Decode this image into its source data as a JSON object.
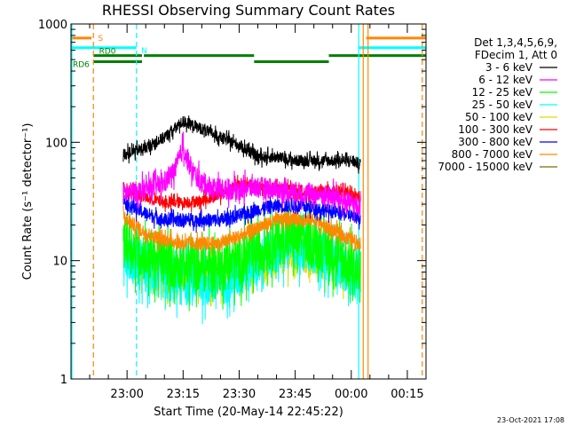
{
  "chart_data": {
    "type": "line",
    "title": "RHESSI Observing Summary Count Rates",
    "xlabel": "Start Time (20-May-14 22:45:22)",
    "ylabel": "Count Rate (s⁻¹ detector⁻¹)",
    "y_scale": "log",
    "ylim": [
      1,
      1000
    ],
    "xlim_minutes_after_2245": [
      0,
      95
    ],
    "grid": false,
    "legend_placement": "right",
    "y_ticks": [
      {
        "value": 1,
        "label": "1"
      },
      {
        "value": 10,
        "label": "10"
      },
      {
        "value": 100,
        "label": "100"
      },
      {
        "value": 1000,
        "label": "1000"
      }
    ],
    "x_ticks": [
      {
        "minute": 15,
        "label": "23:00"
      },
      {
        "minute": 30,
        "label": "23:15"
      },
      {
        "minute": 45,
        "label": "23:30"
      },
      {
        "minute": 60,
        "label": "23:45"
      },
      {
        "minute": 75,
        "label": "00:00"
      },
      {
        "minute": 90,
        "label": "00:15"
      }
    ],
    "legend_header": [
      "Det 1,3,4,5,6,9,",
      "FDecim 1, Att 0"
    ],
    "series": [
      {
        "name": "3 - 6 keV",
        "color": "#000000",
        "minutes": [
          14,
          15,
          20,
          25,
          30,
          35,
          40,
          45,
          50,
          55,
          60,
          65,
          70,
          75,
          77.5
        ],
        "values": [
          80,
          80,
          90,
          110,
          150,
          130,
          110,
          95,
          75,
          75,
          70,
          70,
          70,
          70,
          65
        ]
      },
      {
        "name": "6 - 12 keV",
        "color": "#ff00ff",
        "minutes": [
          14,
          15,
          20,
          25,
          28,
          30,
          32,
          35,
          40,
          45,
          50,
          55,
          60,
          65,
          70,
          75,
          77.5
        ],
        "values": [
          37,
          37,
          40,
          45,
          60,
          90,
          60,
          45,
          40,
          40,
          42,
          40,
          38,
          36,
          35,
          30,
          28
        ]
      },
      {
        "name": "12 - 25 keV",
        "color": "#00ff00",
        "minutes": [
          14,
          15,
          20,
          25,
          30,
          35,
          40,
          45,
          50,
          55,
          60,
          65,
          70,
          75,
          77.5
        ],
        "values": [
          16,
          14,
          11,
          10,
          9,
          9,
          9,
          10,
          12,
          15,
          16,
          14,
          12,
          9,
          7
        ]
      },
      {
        "name": "25 - 50 keV",
        "color": "#00ffff",
        "minutes": [
          14,
          15,
          20,
          25,
          30,
          35,
          40,
          45,
          50,
          55,
          60,
          65,
          70,
          75,
          77.5
        ],
        "values": [
          13,
          11,
          8,
          7,
          6.5,
          6.5,
          6.5,
          7.5,
          10,
          12,
          13,
          12,
          10,
          8,
          7
        ]
      },
      {
        "name": "50 - 100 keV",
        "color": "#dddd00",
        "minutes": [
          14,
          15,
          20,
          25,
          30,
          35,
          40,
          45,
          50,
          55,
          60,
          65,
          70,
          75,
          77.5
        ],
        "values": [
          11,
          10,
          8,
          7,
          7,
          7,
          7.5,
          8,
          9,
          10,
          11,
          10,
          9,
          8,
          7.5
        ]
      },
      {
        "name": "100 - 300 keV",
        "color": "#ff0000",
        "minutes": [
          14,
          15,
          20,
          25,
          30,
          35,
          40,
          45,
          50,
          55,
          60,
          65,
          70,
          75,
          77.5
        ],
        "values": [
          42,
          40,
          34,
          31,
          31,
          32,
          36,
          45,
          42,
          40,
          40,
          38,
          40,
          36,
          34
        ]
      },
      {
        "name": "300 - 800 keV",
        "color": "#0000ff",
        "minutes": [
          14,
          15,
          20,
          25,
          30,
          35,
          40,
          45,
          50,
          55,
          60,
          65,
          70,
          75,
          77.5
        ],
        "values": [
          33,
          30,
          25,
          22,
          22,
          22,
          22,
          24,
          27,
          29,
          29,
          28,
          26,
          24,
          23
        ]
      },
      {
        "name": "800 - 7000 keV",
        "color": "#ff8800",
        "minutes": [
          14,
          15,
          20,
          25,
          30,
          35,
          40,
          45,
          50,
          55,
          60,
          65,
          70,
          75,
          77.5
        ],
        "values": [
          24,
          22,
          17,
          15,
          14,
          14,
          14,
          16,
          19,
          22,
          23,
          22,
          18,
          15,
          14
        ]
      },
      {
        "name": "7000 - 15000 keV",
        "color": "#886600",
        "minutes": [],
        "values": []
      }
    ],
    "state_bars": [
      {
        "label": "S",
        "label_color": "#ff8800",
        "segments": [
          {
            "color": "#ff8800",
            "y": 760,
            "from": 0,
            "to": 5.5
          },
          {
            "color": "#ff8800",
            "y": 760,
            "from": 79,
            "to": 95
          }
        ]
      },
      {
        "label": "N",
        "label_color": "#00ffff",
        "segments": [
          {
            "color": "#00ffff",
            "y": 630,
            "from": 0,
            "to": 17.5
          },
          {
            "color": "#00ffff",
            "y": 630,
            "from": 77,
            "to": 95
          }
        ]
      },
      {
        "label": "RD0",
        "label_color": "#008000",
        "segments": [
          {
            "color": "#008000",
            "y": 540,
            "from": 6,
            "to": 19
          },
          {
            "color": "#008000",
            "y": 540,
            "from": 19.5,
            "to": 49
          },
          {
            "color": "#008000",
            "y": 540,
            "from": 69,
            "to": 95
          }
        ]
      },
      {
        "label": "RD6",
        "label_color": "#008000",
        "segments": [
          {
            "color": "#008000",
            "y": 480,
            "from": 6,
            "to": 19
          },
          {
            "color": "#008000",
            "y": 480,
            "from": 49,
            "to": 69
          }
        ]
      }
    ],
    "vertical_markers": [
      {
        "minute": 6,
        "color": "#ff8800",
        "style": "dashed"
      },
      {
        "minute": 17.5,
        "color": "#00ffff",
        "style": "dashed"
      },
      {
        "minute": 77,
        "color": "#00ffff",
        "style": "solid"
      },
      {
        "minute": 78.2,
        "color": "#ff8800",
        "style": "solid"
      },
      {
        "minute": 79.5,
        "color": "#ff8800",
        "style": "solid"
      },
      {
        "minute": 94,
        "color": "#ff8800",
        "style": "dashed"
      },
      {
        "minute": 0,
        "color": "#00ffff",
        "style": "solid"
      }
    ],
    "footer_date": "23-Oct-2021 17:08"
  }
}
